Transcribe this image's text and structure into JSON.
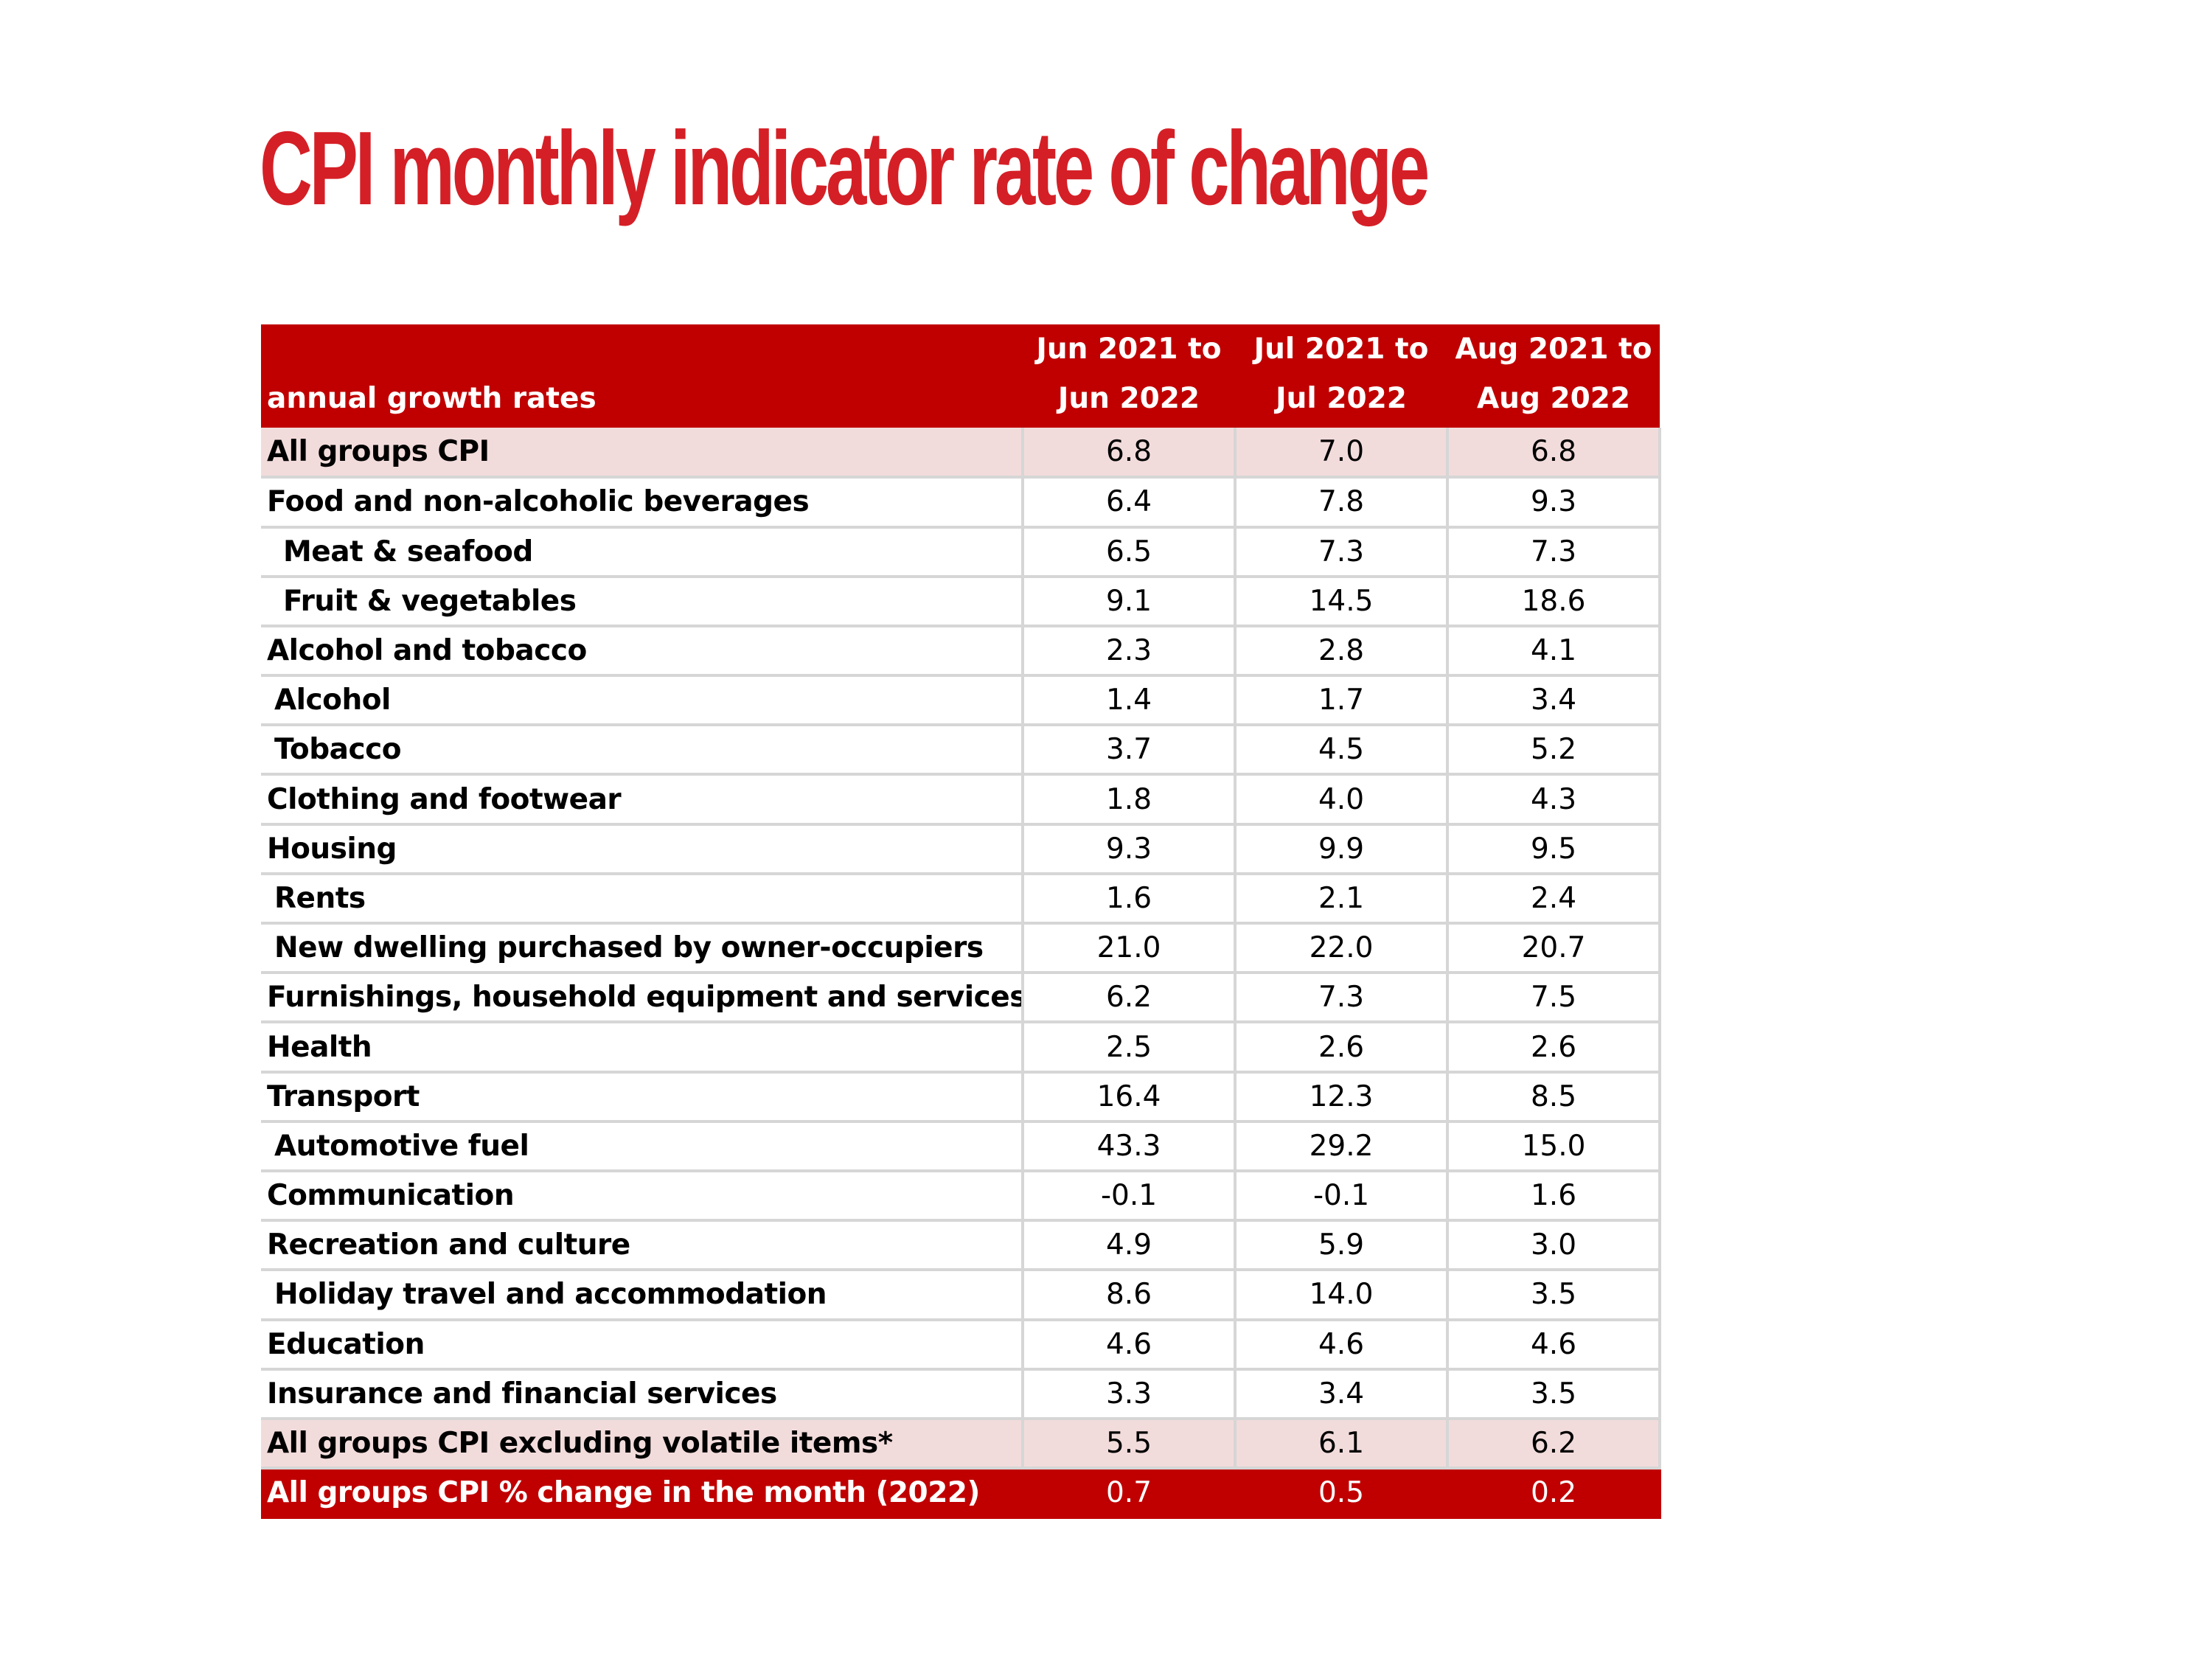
{
  "title": "CPI monthly indicator rate of change",
  "chart_data": {
    "type": "table",
    "title": "CPI monthly indicator rate of change",
    "header": {
      "label": "annual growth rates",
      "periods": [
        {
          "line1": "Jun 2021 to",
          "line2": "Jun 2022"
        },
        {
          "line1": "Jul 2021 to",
          "line2": "Jul 2022"
        },
        {
          "line1": "Aug 2021 to",
          "line2": "Aug 2022"
        }
      ]
    },
    "rows": [
      {
        "label": "All groups CPI",
        "style": "highlight",
        "indent": 0,
        "values": [
          "6.8",
          "7.0",
          "6.8"
        ]
      },
      {
        "label": "Food and non-alcoholic beverages",
        "style": "normal",
        "indent": 0,
        "values": [
          "6.4",
          "7.8",
          "9.3"
        ]
      },
      {
        "label": "Meat & seafood",
        "style": "normal",
        "indent": 2,
        "values": [
          "6.5",
          "7.3",
          "7.3"
        ]
      },
      {
        "label": "Fruit & vegetables",
        "style": "normal",
        "indent": 2,
        "values": [
          "9.1",
          "14.5",
          "18.6"
        ]
      },
      {
        "label": "Alcohol and tobacco",
        "style": "normal",
        "indent": 0,
        "values": [
          "2.3",
          "2.8",
          "4.1"
        ]
      },
      {
        "label": "Alcohol",
        "style": "normal",
        "indent": 1,
        "values": [
          "1.4",
          "1.7",
          "3.4"
        ]
      },
      {
        "label": "Tobacco",
        "style": "normal",
        "indent": 1,
        "values": [
          "3.7",
          "4.5",
          "5.2"
        ]
      },
      {
        "label": "Clothing and footwear",
        "style": "normal",
        "indent": 0,
        "values": [
          "1.8",
          "4.0",
          "4.3"
        ]
      },
      {
        "label": "Housing",
        "style": "normal",
        "indent": 0,
        "values": [
          "9.3",
          "9.9",
          "9.5"
        ]
      },
      {
        "label": "Rents",
        "style": "normal",
        "indent": 1,
        "values": [
          "1.6",
          "2.1",
          "2.4"
        ]
      },
      {
        "label": "New dwelling purchased by owner-occupiers",
        "style": "normal",
        "indent": 1,
        "values": [
          "21.0",
          "22.0",
          "20.7"
        ]
      },
      {
        "label": "Furnishings, household equipment and services",
        "style": "normal",
        "indent": 0,
        "values": [
          "6.2",
          "7.3",
          "7.5"
        ]
      },
      {
        "label": "Health",
        "style": "normal",
        "indent": 0,
        "values": [
          "2.5",
          "2.6",
          "2.6"
        ]
      },
      {
        "label": "Transport",
        "style": "normal",
        "indent": 0,
        "values": [
          "16.4",
          "12.3",
          "8.5"
        ]
      },
      {
        "label": "Automotive fuel",
        "style": "normal",
        "indent": 1,
        "values": [
          "43.3",
          "29.2",
          "15.0"
        ]
      },
      {
        "label": "Communication",
        "style": "normal",
        "indent": 0,
        "values": [
          "-0.1",
          "-0.1",
          "1.6"
        ]
      },
      {
        "label": "Recreation and culture",
        "style": "normal",
        "indent": 0,
        "values": [
          "4.9",
          "5.9",
          "3.0"
        ]
      },
      {
        "label": "Holiday travel and accommodation",
        "style": "normal",
        "indent": 1,
        "values": [
          "8.6",
          "14.0",
          "3.5"
        ]
      },
      {
        "label": "Education",
        "style": "normal",
        "indent": 0,
        "values": [
          "4.6",
          "4.6",
          "4.6"
        ]
      },
      {
        "label": "Insurance and financial services",
        "style": "normal",
        "indent": 0,
        "values": [
          "3.3",
          "3.4",
          "3.5"
        ]
      },
      {
        "label": "All groups CPI excluding volatile items*",
        "style": "highlight",
        "indent": 0,
        "values": [
          "5.5",
          "6.1",
          "6.2"
        ]
      },
      {
        "label": "All groups CPI % change in the month (2022)",
        "style": "total",
        "indent": 0,
        "values": [
          "0.7",
          "0.5",
          "0.2"
        ]
      }
    ]
  },
  "colors": {
    "title": "#d51f26",
    "header_bg": "#c00000",
    "header_text": "#ffffff",
    "highlight_row_bg": "#f2dcdb",
    "total_row_bg": "#c00000",
    "grid": "#d6d6d6"
  }
}
